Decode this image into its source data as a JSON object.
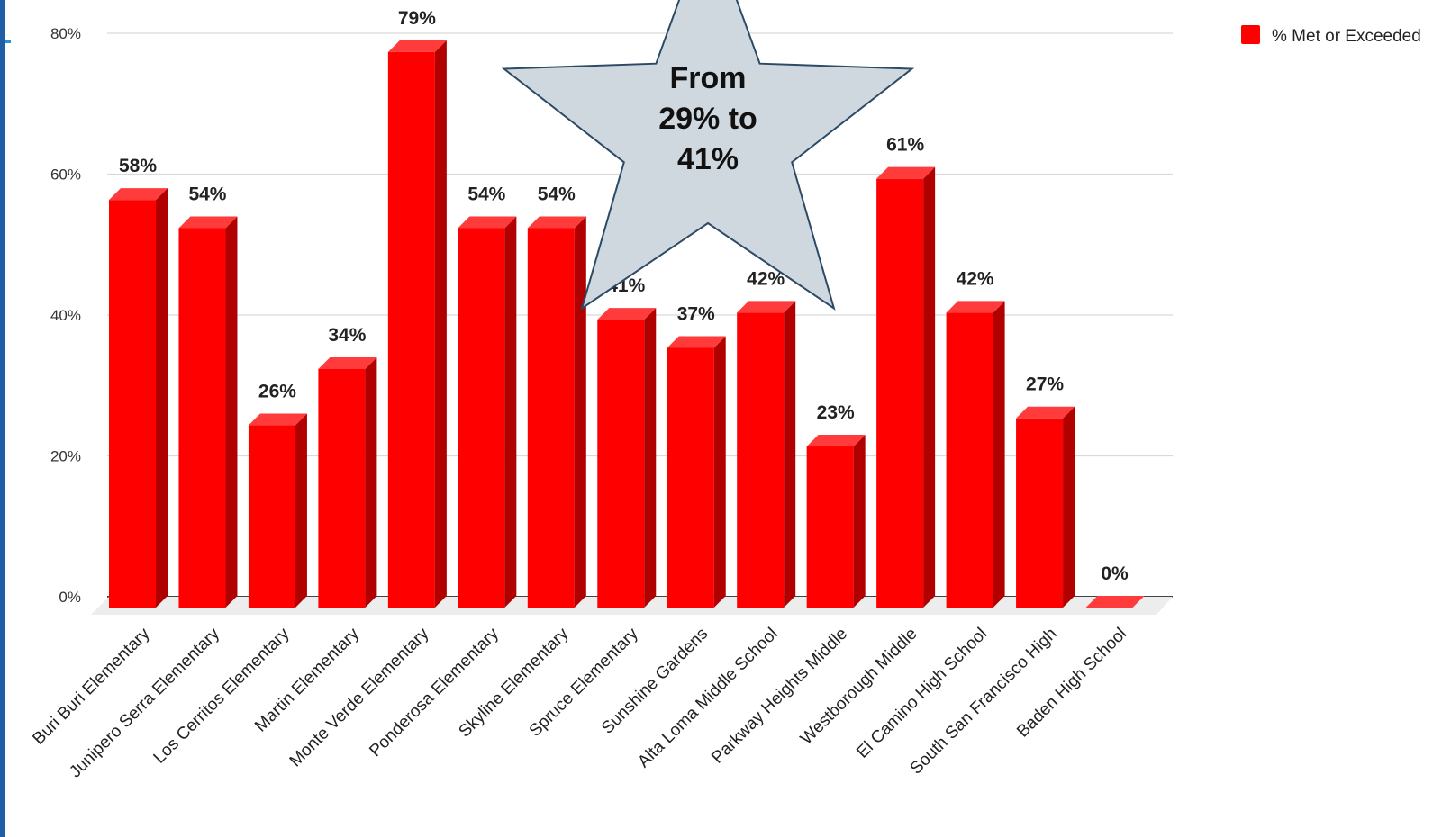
{
  "chart_data": {
    "type": "bar",
    "categories": [
      "Buri Buri Elementary",
      "Junipero Serra Elementary",
      "Los Cerritos Elementary",
      "Martin Elementary",
      "Monte Verde Elementary",
      "Ponderosa Elementary",
      "Skyline Elementary",
      "Spruce Elementary",
      "Sunshine Gardens",
      "Alta Loma Middle School",
      "Parkway Heights Middle",
      "Westborough Middle",
      "El Camino High School",
      "South San Francisco High",
      "Baden High School"
    ],
    "series": [
      {
        "name": "% Met or Exceeded",
        "values": [
          58,
          54,
          26,
          34,
          79,
          54,
          54,
          41,
          37,
          42,
          23,
          61,
          42,
          27,
          0
        ],
        "data_labels": [
          "58%",
          "54%",
          "26%",
          "34%",
          "79%",
          "54%",
          "54%",
          "41%",
          "37%",
          "42%",
          "23%",
          "61%",
          "42%",
          "27%",
          "0%"
        ]
      }
    ],
    "y_ticks": [
      "0%",
      "20%",
      "40%",
      "60%",
      "80%"
    ],
    "ylim": [
      0,
      80
    ],
    "grid": true,
    "legend": "top-right",
    "bar_style": "3d",
    "colors": {
      "bar": "#ff0000",
      "bar_side": "#b00000",
      "bar_top": "#ff3b3b",
      "grid": "#d9d9d9"
    },
    "callout": {
      "shape": "star",
      "lines": [
        "From",
        "29% to",
        "41%"
      ],
      "fill": "#d0d8df",
      "stroke": "#2c4a66"
    }
  },
  "decor": {
    "accent_color": "#1f5fa8"
  }
}
